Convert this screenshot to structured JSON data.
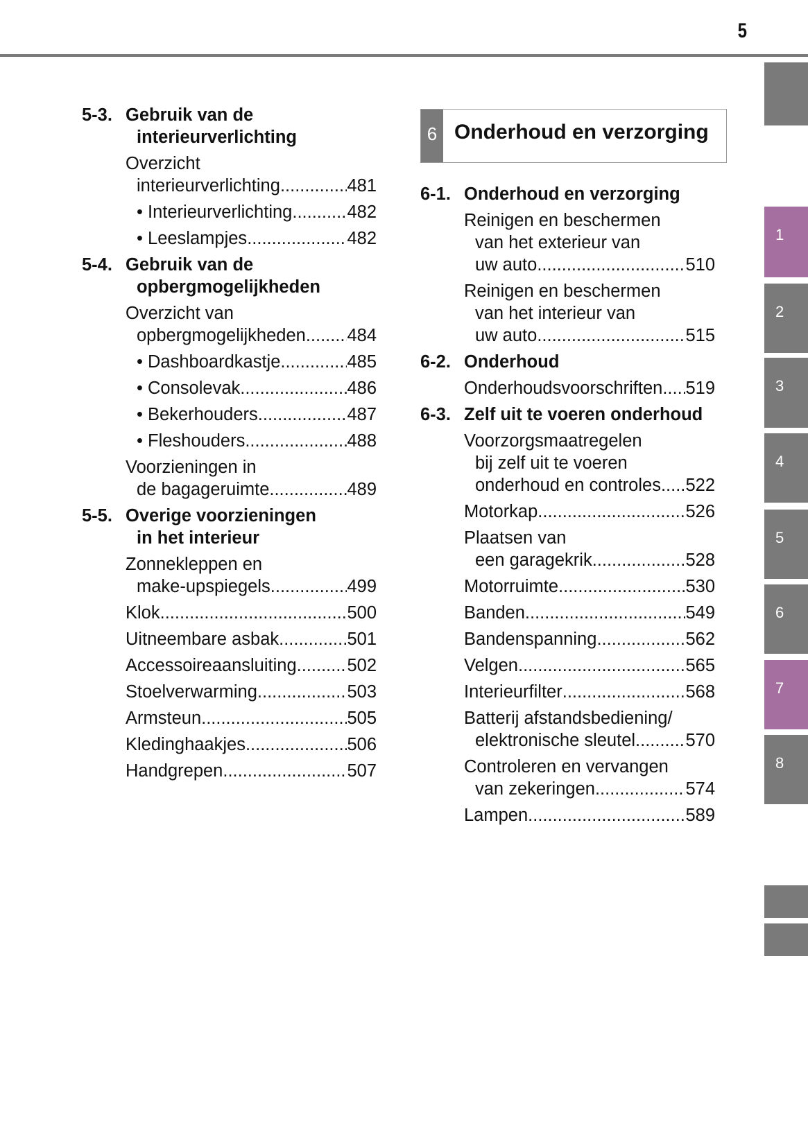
{
  "page_number": "5",
  "chapter": {
    "number": "6",
    "title": "Onderhoud en verzorging"
  },
  "side_tabs": [
    {
      "label": "",
      "active": false
    },
    {
      "label": "1",
      "active": true
    },
    {
      "label": "2",
      "active": false
    },
    {
      "label": "3",
      "active": false
    },
    {
      "label": "4",
      "active": false
    },
    {
      "label": "5",
      "active": false
    },
    {
      "label": "6",
      "active": false
    },
    {
      "label": "7",
      "active": true
    },
    {
      "label": "8",
      "active": false
    },
    {
      "label": "",
      "active": false
    },
    {
      "label": "",
      "active": false
    }
  ],
  "colors": {
    "tab_gray": "#7a7a7a",
    "tab_active": "#a56fa0"
  },
  "left_column": [
    {
      "type": "section",
      "number": "5-3.",
      "lines": [
        "Gebruik van de",
        "interieurverlichting"
      ]
    },
    {
      "type": "item",
      "lines": [
        "Overzicht",
        "interieurverlichting"
      ],
      "page": "481"
    },
    {
      "type": "item",
      "lines": [
        "• Interieurverlichting"
      ],
      "page": "482",
      "indent": true
    },
    {
      "type": "item",
      "lines": [
        "• Leeslampjes"
      ],
      "page": "482",
      "indent": true
    },
    {
      "type": "section",
      "number": "5-4.",
      "lines": [
        "Gebruik van de",
        "opbergmogelijkheden"
      ]
    },
    {
      "type": "item",
      "lines": [
        "Overzicht van",
        "opbergmogelijkheden"
      ],
      "page": "484"
    },
    {
      "type": "item",
      "lines": [
        "• Dashboardkastje"
      ],
      "page": "485",
      "indent": true
    },
    {
      "type": "item",
      "lines": [
        "• Consolevak"
      ],
      "page": "486",
      "indent": true
    },
    {
      "type": "item",
      "lines": [
        "• Bekerhouders"
      ],
      "page": "487",
      "indent": true
    },
    {
      "type": "item",
      "lines": [
        "• Fleshouders"
      ],
      "page": "488",
      "indent": true
    },
    {
      "type": "item",
      "lines": [
        "Voorzieningen in",
        "de bagageruimte"
      ],
      "page": "489"
    },
    {
      "type": "section",
      "number": "5-5.",
      "lines": [
        "Overige voorzieningen",
        "in het interieur"
      ]
    },
    {
      "type": "item",
      "lines": [
        "Zonnekleppen en",
        "make-upspiegels"
      ],
      "page": "499"
    },
    {
      "type": "item",
      "lines": [
        "Klok"
      ],
      "page": "500"
    },
    {
      "type": "item",
      "lines": [
        "Uitneembare asbak"
      ],
      "page": "501"
    },
    {
      "type": "item",
      "lines": [
        "Accessoireaansluiting"
      ],
      "page": "502"
    },
    {
      "type": "item",
      "lines": [
        "Stoelverwarming"
      ],
      "page": "503"
    },
    {
      "type": "item",
      "lines": [
        "Armsteun"
      ],
      "page": "505"
    },
    {
      "type": "item",
      "lines": [
        "Kledinghaakjes"
      ],
      "page": "506"
    },
    {
      "type": "item",
      "lines": [
        "Handgrepen"
      ],
      "page": "507"
    }
  ],
  "right_column": [
    {
      "type": "section",
      "number": "6-1.",
      "lines": [
        "Onderhoud en verzorging"
      ]
    },
    {
      "type": "item",
      "lines": [
        "Reinigen en beschermen",
        "van het exterieur van",
        "uw auto"
      ],
      "page": "510"
    },
    {
      "type": "item",
      "lines": [
        "Reinigen en beschermen",
        "van het interieur van",
        "uw auto"
      ],
      "page": "515"
    },
    {
      "type": "section",
      "number": "6-2.",
      "lines": [
        "Onderhoud"
      ]
    },
    {
      "type": "item",
      "lines": [
        "Onderhoudsvoorschriften"
      ],
      "page": "519"
    },
    {
      "type": "section",
      "number": "6-3.",
      "lines": [
        "Zelf uit te voeren onderhoud"
      ]
    },
    {
      "type": "item",
      "lines": [
        "Voorzorgsmaatregelen",
        "bij zelf uit te voeren",
        "onderhoud en controles"
      ],
      "page": "522"
    },
    {
      "type": "item",
      "lines": [
        "Motorkap"
      ],
      "page": "526"
    },
    {
      "type": "item",
      "lines": [
        "Plaatsen van",
        "een garagekrik"
      ],
      "page": "528"
    },
    {
      "type": "item",
      "lines": [
        "Motorruimte"
      ],
      "page": "530"
    },
    {
      "type": "item",
      "lines": [
        "Banden"
      ],
      "page": "549"
    },
    {
      "type": "item",
      "lines": [
        "Bandenspanning"
      ],
      "page": "562"
    },
    {
      "type": "item",
      "lines": [
        "Velgen"
      ],
      "page": "565"
    },
    {
      "type": "item",
      "lines": [
        "Interieurfilter"
      ],
      "page": "568"
    },
    {
      "type": "item",
      "lines": [
        "Batterij afstandsbediening/",
        "elektronische sleutel"
      ],
      "page": "570"
    },
    {
      "type": "item",
      "lines": [
        "Controleren en vervangen",
        "van zekeringen"
      ],
      "page": "574"
    },
    {
      "type": "item",
      "lines": [
        "Lampen"
      ],
      "page": "589"
    }
  ]
}
